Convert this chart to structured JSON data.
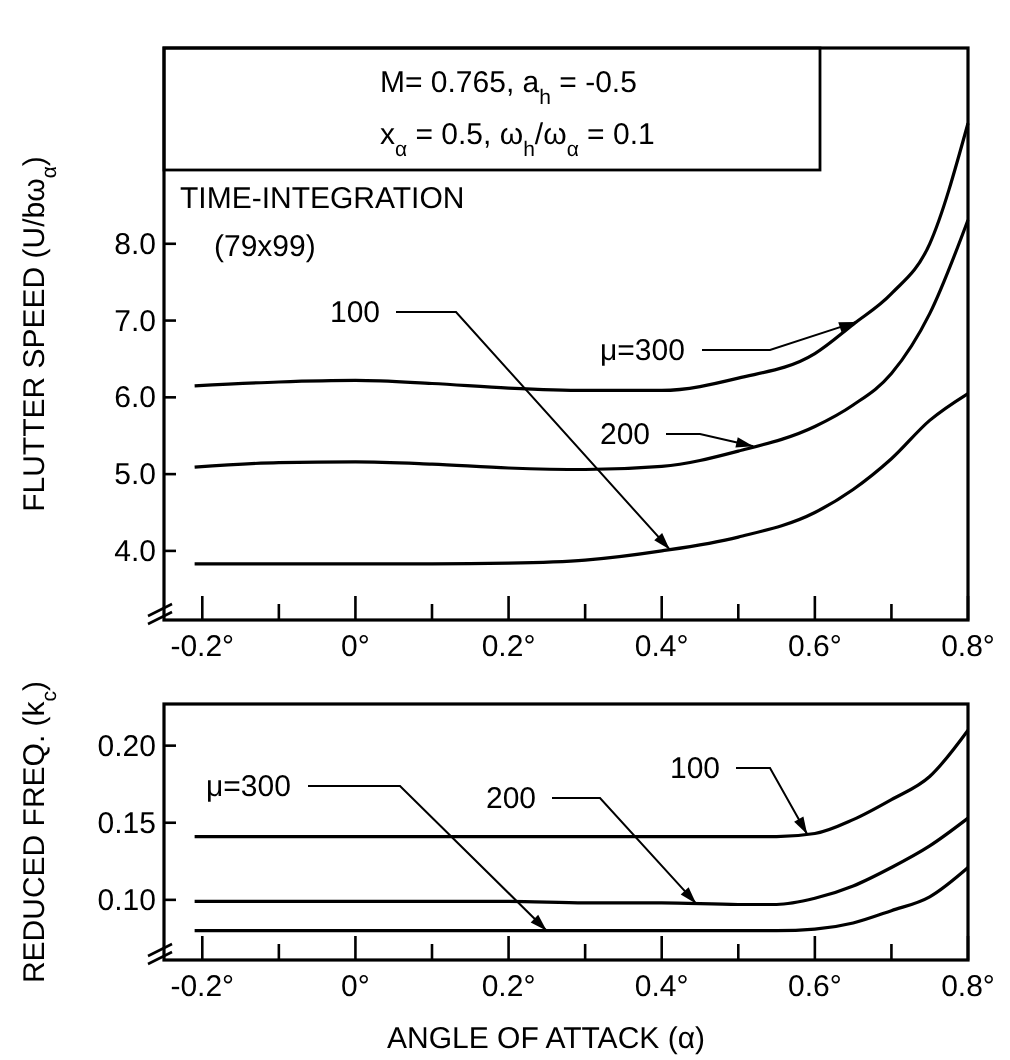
{
  "chart_data": [
    {
      "type": "line",
      "ylabel": "FLUTTER  SPEED (U/bω$_{α}$)",
      "xlim": [
        -0.25,
        0.8
      ],
      "ylim": [
        3.1,
        10.55
      ],
      "xticks": [
        {
          "value": -0.2,
          "label": "-0.2°"
        },
        {
          "value": -0.1,
          "label": null
        },
        {
          "value": 0,
          "label": "0°"
        },
        {
          "value": 0.1,
          "label": null
        },
        {
          "value": 0.2,
          "label": "0.2°"
        },
        {
          "value": 0.3,
          "label": null
        },
        {
          "value": 0.4,
          "label": "0.4°"
        },
        {
          "value": 0.5,
          "label": null
        },
        {
          "value": 0.6,
          "label": "0.6°"
        },
        {
          "value": 0.7,
          "label": null
        },
        {
          "value": 0.8,
          "label": "0.8°"
        }
      ],
      "yticks": [
        {
          "value": 4,
          "label": "4.0"
        },
        {
          "value": 5,
          "label": "5.0"
        },
        {
          "value": 6,
          "label": "6.0"
        },
        {
          "value": 7,
          "label": "7.0"
        },
        {
          "value": 8,
          "label": "8.0"
        }
      ],
      "annotations": [
        "M= 0.765, a$_{h}$ = -0.5",
        "x$_{α}$ = 0.5, ω$_{h}$/ω$_{α}$ = 0.1",
        "TIME-INTEGRATION",
        "(79x99)"
      ],
      "x": [
        -0.21,
        -0.1,
        0,
        0.1,
        0.2,
        0.3,
        0.4,
        0.5,
        0.6,
        0.65,
        0.7,
        0.75,
        0.8
      ],
      "series": [
        {
          "name": "μ=300",
          "color": "#000000",
          "values": [
            6.15,
            6.2,
            6.22,
            6.18,
            6.12,
            6.09,
            6.09,
            6.25,
            6.57,
            6.95,
            7.35,
            8.0,
            9.57
          ]
        },
        {
          "name": "200",
          "color": "#000000",
          "values": [
            5.09,
            5.15,
            5.16,
            5.13,
            5.08,
            5.06,
            5.1,
            5.3,
            5.62,
            5.9,
            6.31,
            7.09,
            8.31
          ]
        },
        {
          "name": "100",
          "color": "#000000",
          "values": [
            3.83,
            3.83,
            3.83,
            3.83,
            3.84,
            3.88,
            4.0,
            4.18,
            4.5,
            4.8,
            5.2,
            5.7,
            6.05
          ]
        }
      ]
    },
    {
      "type": "line",
      "ylabel": "REDUCED FREQ. (k$_{c}$)",
      "xlabel": "ANGLE  OF  ATTACK   (α)",
      "xlim": [
        -0.25,
        0.8
      ],
      "ylim": [
        0.061,
        0.227
      ],
      "xticks": [
        {
          "value": -0.2,
          "label": "-0.2°"
        },
        {
          "value": -0.1,
          "label": null
        },
        {
          "value": 0,
          "label": "0°"
        },
        {
          "value": 0.1,
          "label": null
        },
        {
          "value": 0.2,
          "label": "0.2°"
        },
        {
          "value": 0.3,
          "label": null
        },
        {
          "value": 0.4,
          "label": "0.4°"
        },
        {
          "value": 0.5,
          "label": null
        },
        {
          "value": 0.6,
          "label": "0.6°"
        },
        {
          "value": 0.7,
          "label": null
        },
        {
          "value": 0.8,
          "label": "0.8°"
        }
      ],
      "yticks": [
        {
          "value": 0.1,
          "label": "0.10"
        },
        {
          "value": 0.15,
          "label": "0.15"
        },
        {
          "value": 0.2,
          "label": "0.20"
        }
      ],
      "x": [
        -0.21,
        -0.1,
        0,
        0.1,
        0.2,
        0.3,
        0.4,
        0.5,
        0.55,
        0.6,
        0.65,
        0.7,
        0.75,
        0.8
      ],
      "series": [
        {
          "name": "μ=300",
          "color": "#000000",
          "values": [
            0.08,
            0.08,
            0.08,
            0.08,
            0.08,
            0.08,
            0.08,
            0.08,
            0.08,
            0.081,
            0.085,
            0.093,
            0.102,
            0.121
          ]
        },
        {
          "name": "200",
          "color": "#000000",
          "values": [
            0.099,
            0.099,
            0.099,
            0.099,
            0.099,
            0.098,
            0.098,
            0.097,
            0.097,
            0.101,
            0.109,
            0.121,
            0.135,
            0.153
          ]
        },
        {
          "name": "100",
          "color": "#000000",
          "values": [
            0.141,
            0.141,
            0.141,
            0.141,
            0.141,
            0.141,
            0.141,
            0.141,
            0.141,
            0.143,
            0.152,
            0.165,
            0.18,
            0.21
          ]
        }
      ]
    }
  ]
}
